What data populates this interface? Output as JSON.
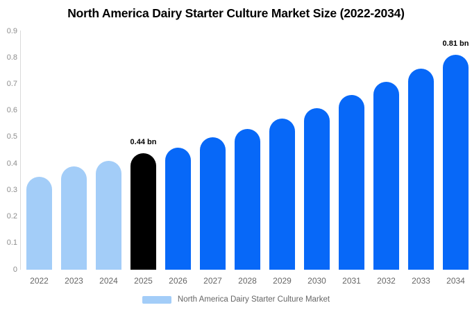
{
  "header": {
    "title": "North America Dairy Starter Culture Market Size (2022-2034)"
  },
  "chart_data": {
    "type": "bar",
    "title": "North America Dairy Starter Culture Market Size (2022-2034)",
    "categories": [
      "2022",
      "2023",
      "2024",
      "2025",
      "2026",
      "2027",
      "2028",
      "2029",
      "2030",
      "2031",
      "2032",
      "2033",
      "2034"
    ],
    "values": [
      0.35,
      0.39,
      0.41,
      0.44,
      0.46,
      0.5,
      0.53,
      0.57,
      0.61,
      0.66,
      0.71,
      0.76,
      0.81
    ],
    "value_labels": [
      "",
      "",
      "",
      "0.44 bn",
      "",
      "",
      "",
      "",
      "",
      "",
      "",
      "",
      "0.81 bn"
    ],
    "bar_colors": [
      "#a3cdf8",
      "#a3cdf8",
      "#a3cdf8",
      "#000000",
      "#0768f8",
      "#0768f8",
      "#0768f8",
      "#0768f8",
      "#0768f8",
      "#0768f8",
      "#0768f8",
      "#0768f8",
      "#0768f8"
    ],
    "unit": "bn",
    "xlabel": "",
    "ylabel": "",
    "ylim": [
      0,
      0.9
    ],
    "yticks": [
      0.9,
      0.8,
      0.7,
      0.6,
      0.5,
      0.4,
      0.3,
      0.2,
      0.1,
      0
    ],
    "ytick_labels": [
      "0.9",
      "0.8",
      "0.7",
      "0.6",
      "0.5",
      "0.4",
      "0.3",
      "0.2",
      "0.1",
      "0"
    ],
    "grid": false,
    "legend": {
      "position": "bottom",
      "items": [
        {
          "label": "North America Dairy Starter Culture Market",
          "color": "#a3cdf8"
        }
      ]
    },
    "colors": {
      "historical_bar": "#a3cdf8",
      "base_year_bar": "#000000",
      "forecast_bar": "#0768f8",
      "axis_line": "#d9d9d9",
      "y_tick_text": "#8c8c8c",
      "x_tick_text": "#666666",
      "title_text": "#000000"
    }
  }
}
